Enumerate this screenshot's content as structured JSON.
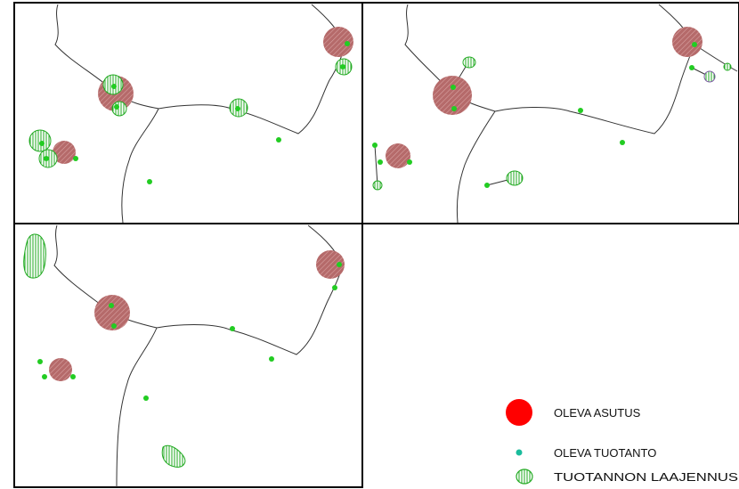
{
  "maps": [
    {
      "id": "map-top-left",
      "label": ""
    },
    {
      "id": "map-top-right",
      "label": ""
    },
    {
      "id": "map-bottom-left",
      "label": ""
    }
  ],
  "legend": {
    "items": [
      {
        "key": "settlement",
        "label": "OLEVA ASUTUS",
        "color": "#ff0000"
      },
      {
        "key": "production",
        "label": "OLEVA TUOTANTO",
        "color": "#1abc9c"
      },
      {
        "key": "expansion",
        "label": "TUOTANNON LAAJENNUS",
        "color": "#22aa22"
      }
    ]
  },
  "colors": {
    "settlement_fill": "#b56a6a",
    "settlement_hatch": "#c98a8a",
    "production_dot": "#22cc22",
    "expansion_stroke": "#22aa22",
    "road": "#333333",
    "frame": "#000000"
  }
}
